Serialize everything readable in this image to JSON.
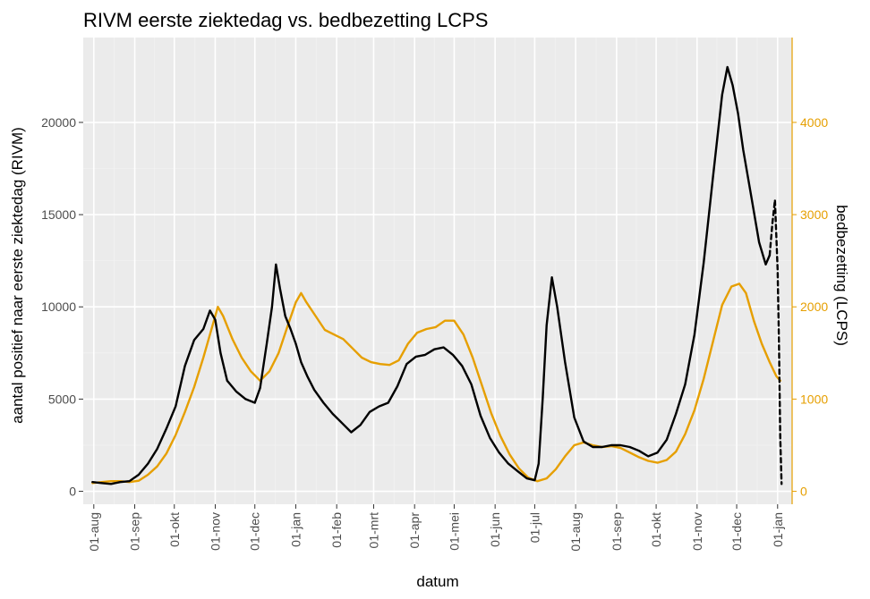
{
  "chart_data": {
    "type": "line",
    "title": "RIVM eerste ziektedag vs. bedbezetting LCPS",
    "xlabel": "datum",
    "ylabel": "aantal positief naar eerste ziektedag (RIVM)",
    "ylabel_right": "bedbezetting (LCPS)",
    "x_ticks": [
      "01-aug",
      "01-sep",
      "01-okt",
      "01-nov",
      "01-dec",
      "01-jan",
      "01-feb",
      "01-mrt",
      "01-apr",
      "01-mei",
      "01-jun",
      "01-jul",
      "01-aug",
      "01-sep",
      "01-okt",
      "01-nov",
      "01-dec",
      "01-jan"
    ],
    "y_ticks_left": [
      "0",
      "5000",
      "10000",
      "15000",
      "20000"
    ],
    "y_ticks_right": [
      "0",
      "1000",
      "2000",
      "3000",
      "4000"
    ],
    "ylim_left": [
      -700,
      24600
    ],
    "ylim_right": [
      -140,
      4920
    ],
    "grid": true,
    "colors": {
      "rivm": "#000000",
      "lcps": "#E69F00",
      "panel": "#EBEBEB",
      "grid_major": "#FFFFFF",
      "grid_minor": "#F2F2F2"
    },
    "series": [
      {
        "id": "rivm",
        "axis": "left",
        "style": "solid",
        "points": [
          [
            "2020-07-31",
            500
          ],
          [
            "2020-08-07",
            450
          ],
          [
            "2020-08-14",
            400
          ],
          [
            "2020-08-21",
            500
          ],
          [
            "2020-08-28",
            550
          ],
          [
            "2020-09-04",
            900
          ],
          [
            "2020-09-11",
            1500
          ],
          [
            "2020-09-18",
            2300
          ],
          [
            "2020-09-25",
            3400
          ],
          [
            "2020-10-02",
            4600
          ],
          [
            "2020-10-09",
            6800
          ],
          [
            "2020-10-16",
            8200
          ],
          [
            "2020-10-23",
            8800
          ],
          [
            "2020-10-28",
            9800
          ],
          [
            "2020-11-01",
            9300
          ],
          [
            "2020-11-05",
            7500
          ],
          [
            "2020-11-10",
            6000
          ],
          [
            "2020-11-17",
            5400
          ],
          [
            "2020-11-24",
            5000
          ],
          [
            "2020-12-01",
            4800
          ],
          [
            "2020-12-05",
            5600
          ],
          [
            "2020-12-10",
            8000
          ],
          [
            "2020-12-14",
            10000
          ],
          [
            "2020-12-17",
            12300
          ],
          [
            "2020-12-20",
            11000
          ],
          [
            "2020-12-24",
            9500
          ],
          [
            "2020-12-28",
            8800
          ],
          [
            "2021-01-01",
            8000
          ],
          [
            "2021-01-05",
            7000
          ],
          [
            "2021-01-10",
            6200
          ],
          [
            "2021-01-15",
            5500
          ],
          [
            "2021-01-22",
            4800
          ],
          [
            "2021-01-29",
            4200
          ],
          [
            "2021-02-05",
            3700
          ],
          [
            "2021-02-12",
            3200
          ],
          [
            "2021-02-19",
            3600
          ],
          [
            "2021-02-26",
            4300
          ],
          [
            "2021-03-05",
            4600
          ],
          [
            "2021-03-12",
            4800
          ],
          [
            "2021-03-19",
            5700
          ],
          [
            "2021-03-26",
            6900
          ],
          [
            "2021-04-02",
            7300
          ],
          [
            "2021-04-09",
            7400
          ],
          [
            "2021-04-16",
            7700
          ],
          [
            "2021-04-23",
            7800
          ],
          [
            "2021-04-30",
            7400
          ],
          [
            "2021-05-07",
            6800
          ],
          [
            "2021-05-14",
            5800
          ],
          [
            "2021-05-21",
            4100
          ],
          [
            "2021-05-28",
            2900
          ],
          [
            "2021-06-04",
            2100
          ],
          [
            "2021-06-11",
            1500
          ],
          [
            "2021-06-18",
            1100
          ],
          [
            "2021-06-25",
            700
          ],
          [
            "2021-07-01",
            600
          ],
          [
            "2021-07-04",
            1500
          ],
          [
            "2021-07-07",
            5000
          ],
          [
            "2021-07-10",
            9000
          ],
          [
            "2021-07-14",
            11600
          ],
          [
            "2021-07-18",
            10000
          ],
          [
            "2021-07-24",
            7000
          ],
          [
            "2021-07-31",
            4000
          ],
          [
            "2021-08-07",
            2700
          ],
          [
            "2021-08-14",
            2400
          ],
          [
            "2021-08-21",
            2400
          ],
          [
            "2021-08-28",
            2500
          ],
          [
            "2021-09-04",
            2500
          ],
          [
            "2021-09-11",
            2400
          ],
          [
            "2021-09-18",
            2200
          ],
          [
            "2021-09-25",
            1900
          ],
          [
            "2021-10-02",
            2100
          ],
          [
            "2021-10-09",
            2800
          ],
          [
            "2021-10-16",
            4200
          ],
          [
            "2021-10-23",
            5800
          ],
          [
            "2021-10-30",
            8500
          ],
          [
            "2021-11-06",
            12400
          ],
          [
            "2021-11-13",
            17000
          ],
          [
            "2021-11-20",
            21500
          ],
          [
            "2021-11-24",
            23000
          ],
          [
            "2021-11-28",
            22000
          ],
          [
            "2021-12-02",
            20500
          ],
          [
            "2021-12-06",
            18500
          ],
          [
            "2021-12-12",
            16000
          ],
          [
            "2021-12-18",
            13500
          ],
          [
            "2021-12-23",
            12300
          ],
          [
            "2021-12-26",
            12800
          ]
        ]
      },
      {
        "id": "rivm_provisional",
        "axis": "left",
        "style": "dashed",
        "points": [
          [
            "2021-12-26",
            12800
          ],
          [
            "2021-12-28",
            14500
          ],
          [
            "2021-12-30",
            15800
          ],
          [
            "2022-01-01",
            12000
          ],
          [
            "2022-01-02",
            8000
          ],
          [
            "2022-01-03",
            3000
          ],
          [
            "2022-01-04",
            400
          ]
        ]
      },
      {
        "id": "lcps",
        "axis": "right",
        "style": "solid",
        "points": [
          [
            "2020-07-31",
            90
          ],
          [
            "2020-08-07",
            100
          ],
          [
            "2020-08-14",
            110
          ],
          [
            "2020-08-21",
            110
          ],
          [
            "2020-08-28",
            100
          ],
          [
            "2020-09-04",
            115
          ],
          [
            "2020-09-11",
            180
          ],
          [
            "2020-09-18",
            270
          ],
          [
            "2020-09-25",
            410
          ],
          [
            "2020-10-02",
            610
          ],
          [
            "2020-10-09",
            860
          ],
          [
            "2020-10-16",
            1130
          ],
          [
            "2020-10-23",
            1450
          ],
          [
            "2020-10-30",
            1800
          ],
          [
            "2020-11-03",
            2000
          ],
          [
            "2020-11-07",
            1900
          ],
          [
            "2020-11-14",
            1650
          ],
          [
            "2020-11-21",
            1450
          ],
          [
            "2020-11-28",
            1300
          ],
          [
            "2020-12-05",
            1200
          ],
          [
            "2020-12-12",
            1300
          ],
          [
            "2020-12-19",
            1500
          ],
          [
            "2020-12-26",
            1800
          ],
          [
            "2021-01-01",
            2050
          ],
          [
            "2021-01-05",
            2150
          ],
          [
            "2021-01-09",
            2050
          ],
          [
            "2021-01-16",
            1900
          ],
          [
            "2021-01-23",
            1750
          ],
          [
            "2021-01-30",
            1700
          ],
          [
            "2021-02-06",
            1650
          ],
          [
            "2021-02-13",
            1550
          ],
          [
            "2021-02-20",
            1450
          ],
          [
            "2021-02-27",
            1400
          ],
          [
            "2021-03-06",
            1380
          ],
          [
            "2021-03-13",
            1370
          ],
          [
            "2021-03-20",
            1420
          ],
          [
            "2021-03-27",
            1600
          ],
          [
            "2021-04-03",
            1720
          ],
          [
            "2021-04-10",
            1760
          ],
          [
            "2021-04-17",
            1780
          ],
          [
            "2021-04-24",
            1850
          ],
          [
            "2021-05-01",
            1850
          ],
          [
            "2021-05-08",
            1700
          ],
          [
            "2021-05-15",
            1450
          ],
          [
            "2021-05-22",
            1150
          ],
          [
            "2021-05-29",
            850
          ],
          [
            "2021-06-05",
            600
          ],
          [
            "2021-06-12",
            400
          ],
          [
            "2021-06-19",
            250
          ],
          [
            "2021-06-26",
            150
          ],
          [
            "2021-07-03",
            110
          ],
          [
            "2021-07-10",
            140
          ],
          [
            "2021-07-17",
            240
          ],
          [
            "2021-07-24",
            380
          ],
          [
            "2021-07-31",
            500
          ],
          [
            "2021-08-07",
            530
          ],
          [
            "2021-08-14",
            500
          ],
          [
            "2021-08-21",
            480
          ],
          [
            "2021-08-28",
            490
          ],
          [
            "2021-09-04",
            470
          ],
          [
            "2021-09-11",
            420
          ],
          [
            "2021-09-18",
            370
          ],
          [
            "2021-09-25",
            330
          ],
          [
            "2021-10-02",
            310
          ],
          [
            "2021-10-09",
            340
          ],
          [
            "2021-10-16",
            430
          ],
          [
            "2021-10-23",
            620
          ],
          [
            "2021-10-30",
            880
          ],
          [
            "2021-11-06",
            1220
          ],
          [
            "2021-11-13",
            1620
          ],
          [
            "2021-11-20",
            2020
          ],
          [
            "2021-11-27",
            2220
          ],
          [
            "2021-12-03",
            2250
          ],
          [
            "2021-12-08",
            2150
          ],
          [
            "2021-12-14",
            1850
          ],
          [
            "2021-12-20",
            1600
          ],
          [
            "2021-12-26",
            1400
          ],
          [
            "2021-12-31",
            1250
          ],
          [
            "2022-01-03",
            1200
          ]
        ]
      }
    ]
  }
}
